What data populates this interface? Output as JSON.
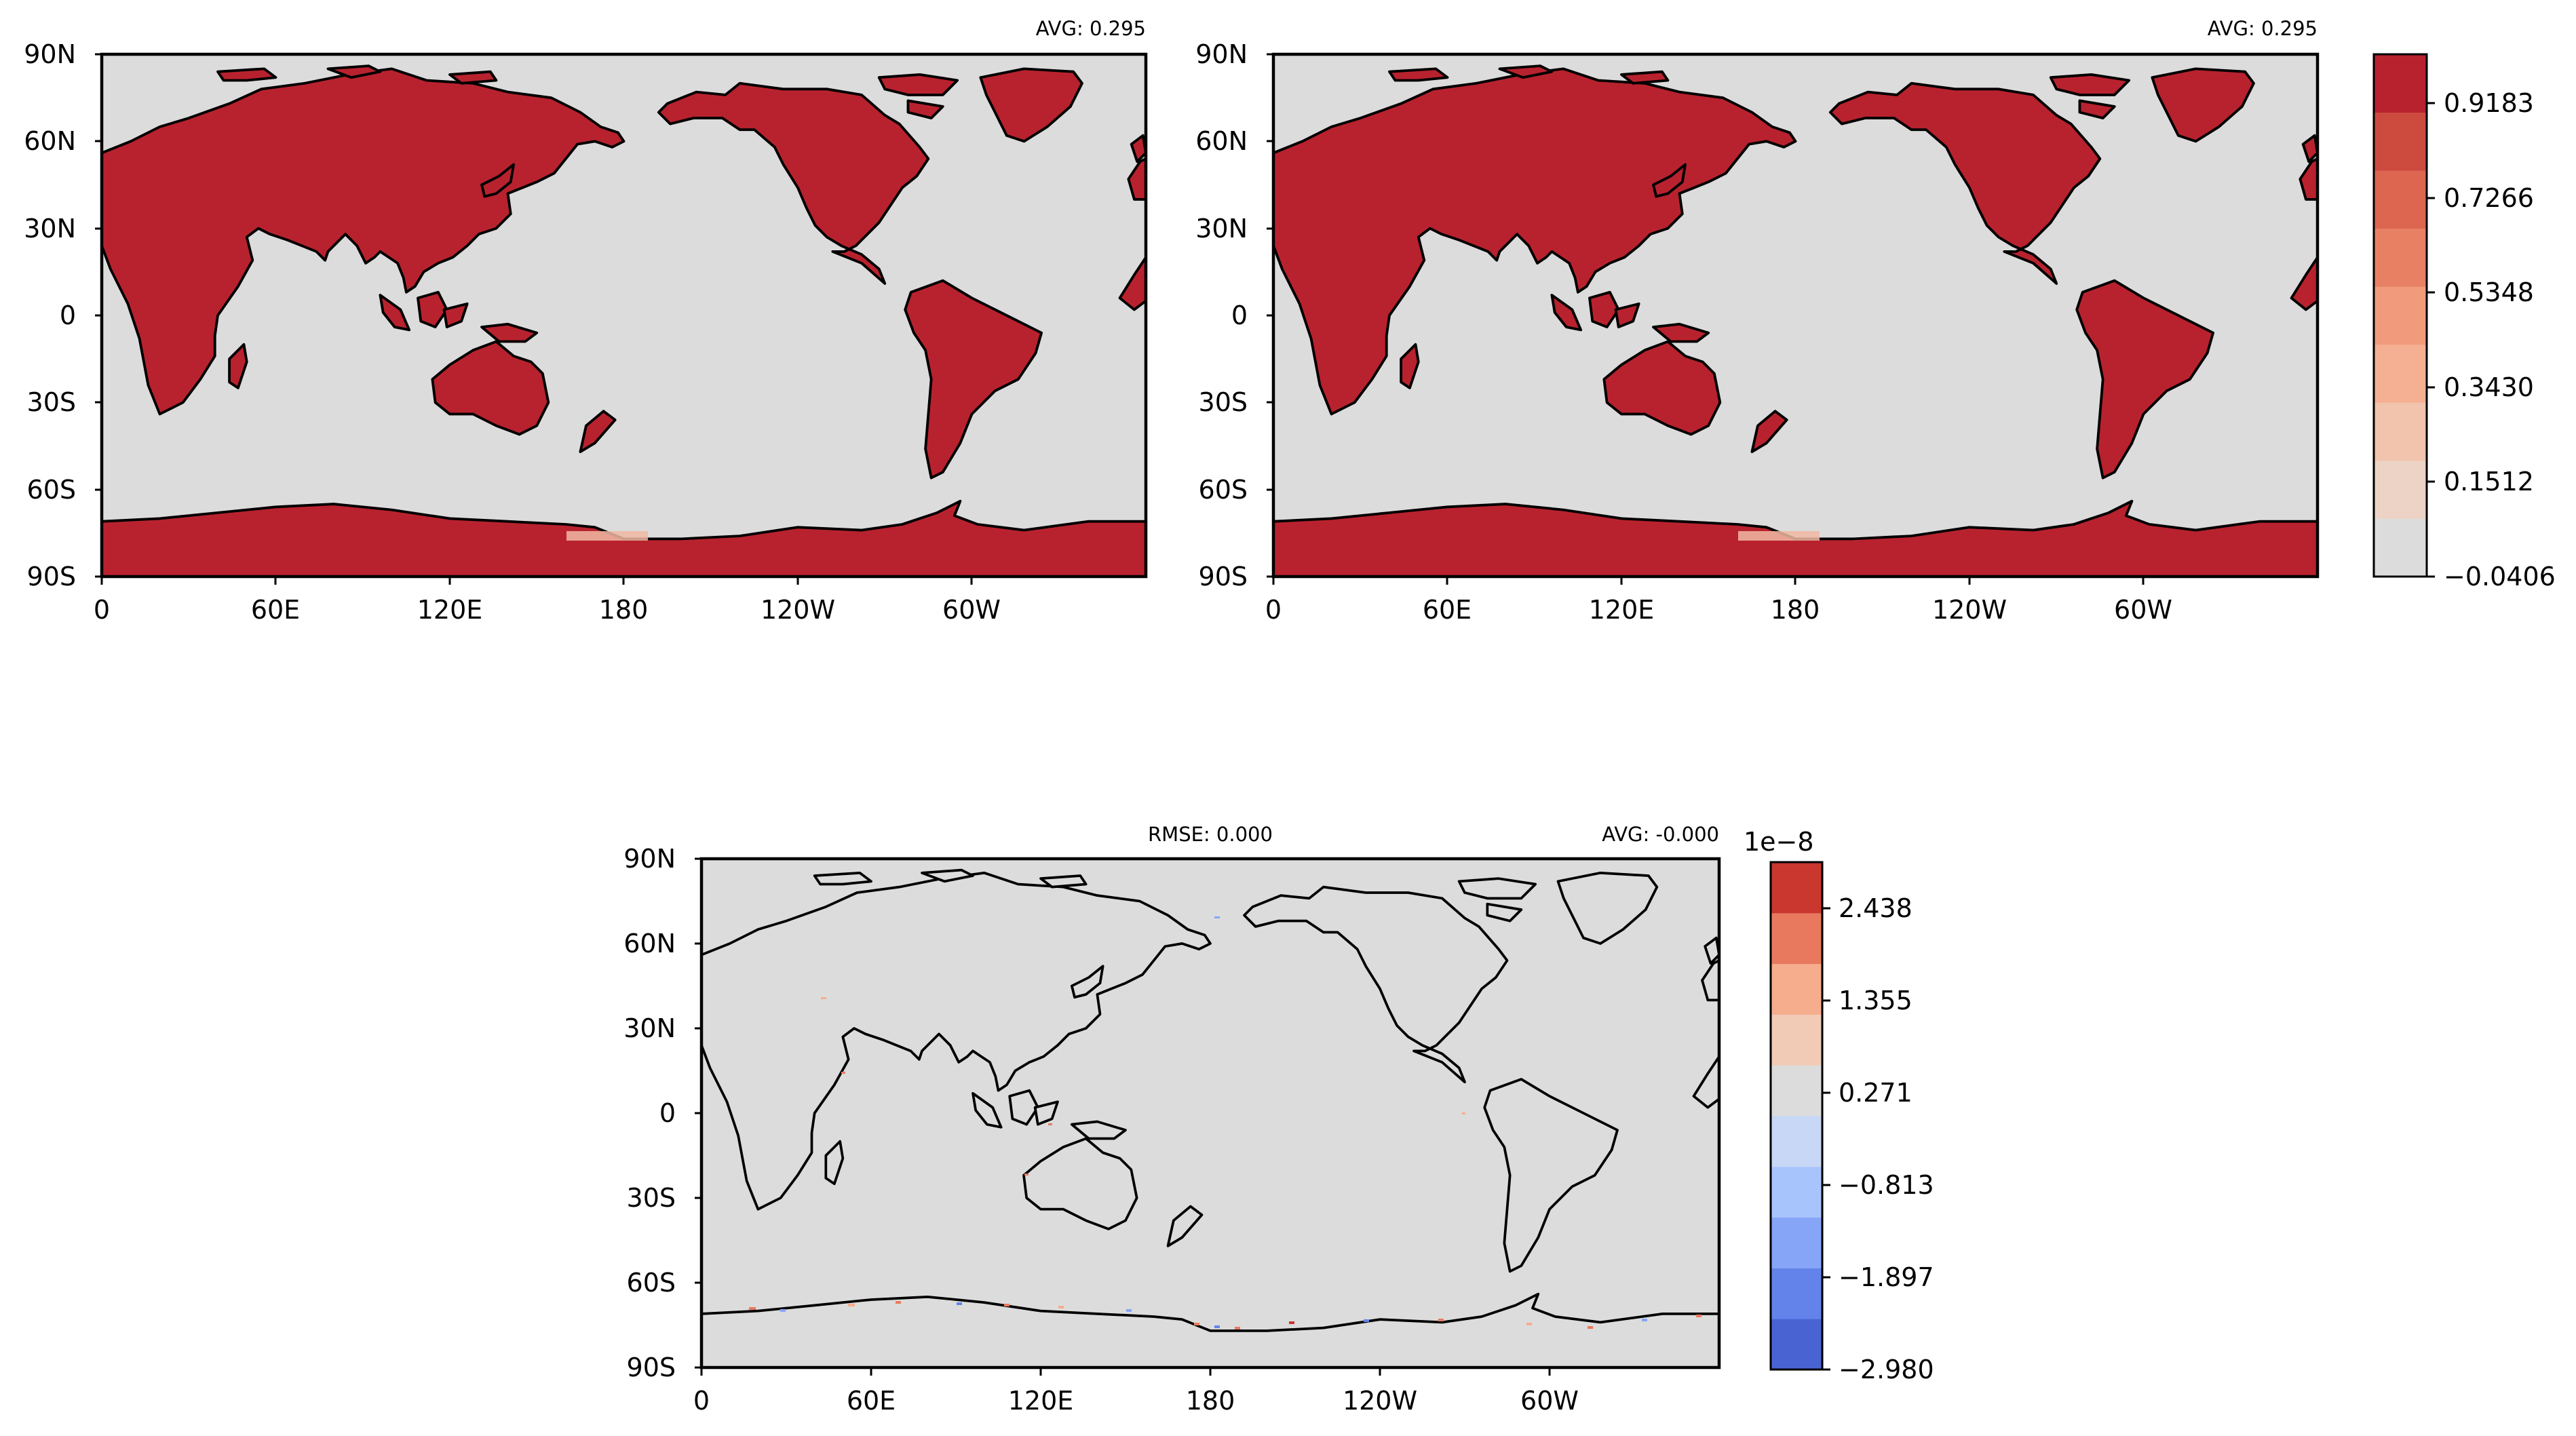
{
  "panels": [
    {
      "id": "panel-1",
      "avg_label": "AVG: 0.295",
      "rmse_label": "",
      "land_color": "#b8222e",
      "ocean_color": "#dcdcdc",
      "outline_color": "#000000"
    },
    {
      "id": "panel-2",
      "avg_label": "AVG: 0.295",
      "rmse_label": "",
      "land_color": "#b8222e",
      "ocean_color": "#dcdcdc",
      "outline_color": "#000000"
    },
    {
      "id": "panel-3",
      "avg_label": "AVG: -0.000",
      "rmse_label": "RMSE: 0.000",
      "land_color": "#dcdcdc",
      "ocean_color": "#dcdcdc",
      "outline_color": "#000000"
    }
  ],
  "axes": {
    "lat_ticks": [
      "90N",
      "60N",
      "30N",
      "0",
      "30S",
      "60S",
      "90S"
    ],
    "lon_ticks": [
      "0",
      "60E",
      "120E",
      "180",
      "120W",
      "60W"
    ]
  },
  "colorbar_top": {
    "exponent": "",
    "labels": [
      "0.9183",
      "0.7266",
      "0.5348",
      "0.3430",
      "0.1512",
      "−0.0406"
    ],
    "colors": [
      "#dcdcdc",
      "#ecd3c6",
      "#f2c4ad",
      "#f5b094",
      "#f19b7c",
      "#e88164",
      "#dc6650",
      "#cd4a3f",
      "#b8222e"
    ]
  },
  "colorbar_bottom": {
    "exponent": "1e−8",
    "labels": [
      "2.438",
      "1.355",
      "0.271",
      "−0.813",
      "−1.897",
      "−2.980"
    ],
    "colors": [
      "#4a63d3",
      "#6383ea",
      "#86a5f7",
      "#a8c4fd",
      "#c7d7f5",
      "#dcdcdc",
      "#f2cbb7",
      "#f5ad8d",
      "#e8795f",
      "#c9372f"
    ]
  }
}
